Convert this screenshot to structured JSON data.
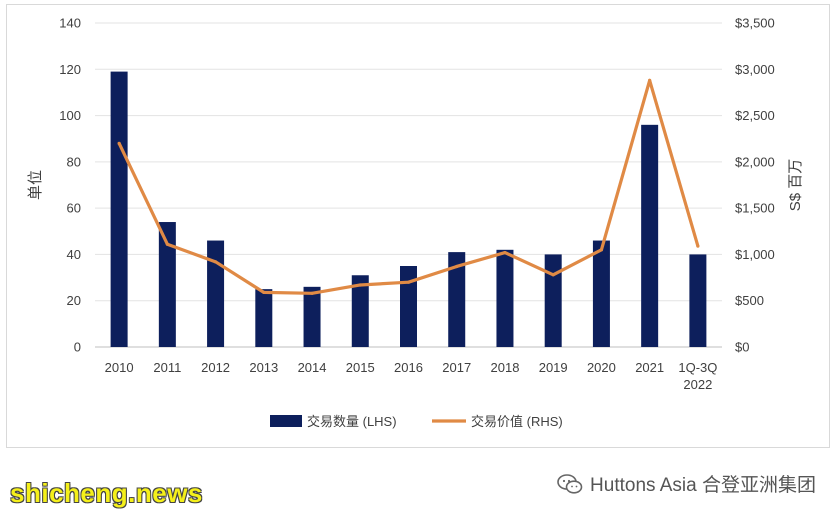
{
  "chart_data": {
    "type": "bar",
    "categories": [
      "2010",
      "2011",
      "2012",
      "2013",
      "2014",
      "2015",
      "2016",
      "2017",
      "2018",
      "2019",
      "2020",
      "2021",
      "1Q-3Q\n2022"
    ],
    "series": [
      {
        "name": "交易数量 (LHS)",
        "type": "bar",
        "axis": "left",
        "color": "#0d1f5c",
        "values": [
          119,
          54,
          46,
          25,
          26,
          31,
          35,
          41,
          42,
          40,
          46,
          96,
          40
        ]
      },
      {
        "name": "交易价值 (RHS)",
        "type": "line",
        "axis": "right",
        "color": "#e08a45",
        "values": [
          2200,
          1110,
          920,
          590,
          580,
          670,
          700,
          870,
          1020,
          780,
          1050,
          2880,
          1090
        ]
      }
    ],
    "ylabel": "单位",
    "ylabel_right": "S$ 百万",
    "ylim": [
      0,
      140
    ],
    "ylim_right": [
      0,
      3500
    ],
    "yticks": [
      "0",
      "20",
      "40",
      "60",
      "80",
      "100",
      "120",
      "140"
    ],
    "yticks_right": [
      "$0",
      "$500",
      "$1,000",
      "$1,500",
      "$2,000",
      "$2,500",
      "$3,000",
      "$3,500"
    ],
    "grid": true,
    "legend_position": "bottom"
  },
  "watermark": {
    "left_text": "shicheng.news",
    "right_text": "Huttons Asia 合登亚洲集团",
    "icon": "wechat-icon"
  }
}
